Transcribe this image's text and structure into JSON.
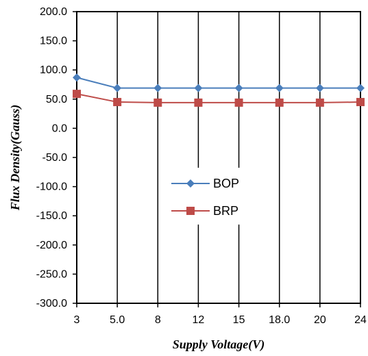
{
  "chart_data": {
    "type": "line",
    "title": "",
    "xlabel": "Supply Voltage(V)",
    "ylabel": "Flux Density(Gauss)",
    "categories": [
      "3",
      "5.0",
      "8",
      "12",
      "15",
      "18.0",
      "20",
      "24"
    ],
    "ylim": [
      -300,
      200
    ],
    "yticks": [
      "200.0",
      "150.0",
      "100.0",
      "50.0",
      "0.0",
      "-50.0",
      "-100.0",
      "-150.0",
      "-200.0",
      "-250.0",
      "-300.0"
    ],
    "grid": "vertical",
    "legend_position": "center",
    "series": [
      {
        "name": "BOP",
        "color": "#4a7ebb",
        "marker": "diamond",
        "values": [
          87,
          69,
          69,
          69,
          69,
          69,
          69,
          69
        ]
      },
      {
        "name": "BRP",
        "color": "#be4b48",
        "marker": "square",
        "values": [
          59,
          45,
          44,
          44,
          44,
          44,
          44,
          45
        ]
      }
    ]
  }
}
